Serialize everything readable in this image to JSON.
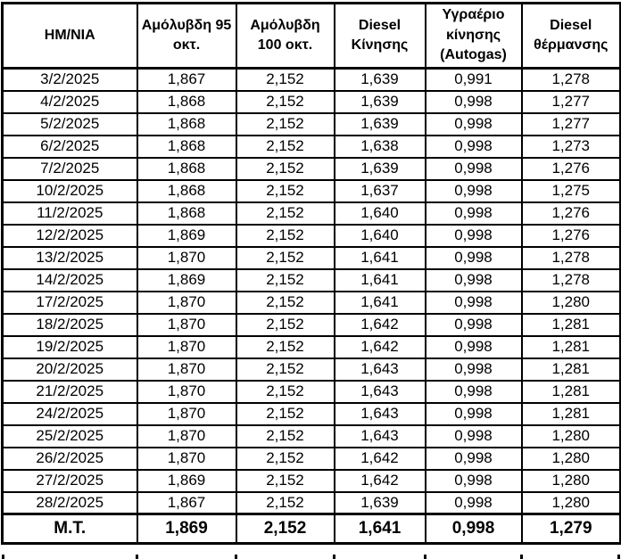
{
  "colors": {
    "background": "#ffffff",
    "border": "#000000",
    "text": "#000000"
  },
  "table": {
    "headers": [
      {
        "lines": [
          "ΗΜ/ΝΙΑ"
        ]
      },
      {
        "lines": [
          "Αμόλυβδη 95",
          "οκτ."
        ]
      },
      {
        "lines": [
          "Αμόλυβδη",
          "100 οκτ."
        ]
      },
      {
        "lines": [
          "Diesel",
          "Κίνησης"
        ]
      },
      {
        "lines": [
          "Υγραέριο",
          "κίνησης",
          "(Autogas)"
        ]
      },
      {
        "lines": [
          "Diesel",
          "θέρμανσης"
        ]
      }
    ],
    "rows": [
      [
        "3/2/2025",
        "1,867",
        "2,152",
        "1,639",
        "0,991",
        "1,278"
      ],
      [
        "4/2/2025",
        "1,868",
        "2,152",
        "1,639",
        "0,998",
        "1,277"
      ],
      [
        "5/2/2025",
        "1,868",
        "2,152",
        "1,639",
        "0,998",
        "1,277"
      ],
      [
        "6/2/2025",
        "1,868",
        "2,152",
        "1,638",
        "0,998",
        "1,273"
      ],
      [
        "7/2/2025",
        "1,868",
        "2,152",
        "1,639",
        "0,998",
        "1,276"
      ],
      [
        "10/2/2025",
        "1,868",
        "2,152",
        "1,637",
        "0,998",
        "1,275"
      ],
      [
        "11/2/2025",
        "1,868",
        "2,152",
        "1,640",
        "0,998",
        "1,276"
      ],
      [
        "12/2/2025",
        "1,869",
        "2,152",
        "1,640",
        "0,998",
        "1,276"
      ],
      [
        "13/2/2025",
        "1,870",
        "2,152",
        "1,641",
        "0,998",
        "1,278"
      ],
      [
        "14/2/2025",
        "1,869",
        "2,152",
        "1,641",
        "0,998",
        "1,278"
      ],
      [
        "17/2/2025",
        "1,870",
        "2,152",
        "1,641",
        "0,998",
        "1,280"
      ],
      [
        "18/2/2025",
        "1,870",
        "2,152",
        "1,642",
        "0,998",
        "1,281"
      ],
      [
        "19/2/2025",
        "1,870",
        "2,152",
        "1,642",
        "0,998",
        "1,281"
      ],
      [
        "20/2/2025",
        "1,870",
        "2,152",
        "1,643",
        "0,998",
        "1,281"
      ],
      [
        "21/2/2025",
        "1,870",
        "2,152",
        "1,643",
        "0,998",
        "1,281"
      ],
      [
        "24/2/2025",
        "1,870",
        "2,152",
        "1,643",
        "0,998",
        "1,281"
      ],
      [
        "25/2/2025",
        "1,870",
        "2,152",
        "1,643",
        "0,998",
        "1,280"
      ],
      [
        "26/2/2025",
        "1,870",
        "2,152",
        "1,642",
        "0,998",
        "1,280"
      ],
      [
        "27/2/2025",
        "1,869",
        "2,152",
        "1,642",
        "0,998",
        "1,280"
      ],
      [
        "28/2/2025",
        "1,867",
        "2,152",
        "1,639",
        "0,998",
        "1,280"
      ]
    ],
    "summary_row": {
      "label": "Μ.Τ.",
      "values": [
        "1,869",
        "2,152",
        "1,641",
        "0,998",
        "1,279"
      ]
    }
  }
}
